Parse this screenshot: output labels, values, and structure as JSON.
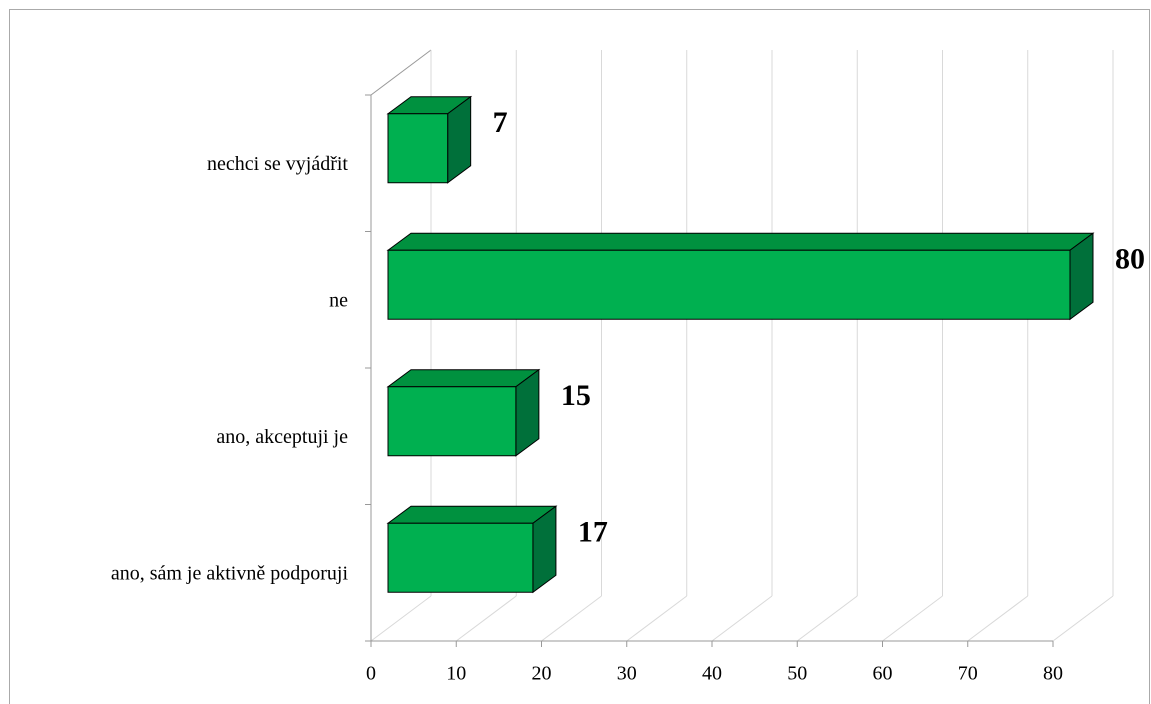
{
  "chart_data": {
    "type": "bar3d_horizontal",
    "categories": [
      "ano, sám je aktivně podporuji",
      "ano, akceptuji je",
      "ne",
      "nechci se vyjádřit"
    ],
    "values": [
      17,
      15,
      80,
      7
    ],
    "color": "#00b050",
    "xlim": [
      0,
      80
    ],
    "xticks": [
      0,
      10,
      20,
      30,
      40,
      50,
      60,
      70,
      80
    ],
    "grid": true
  }
}
